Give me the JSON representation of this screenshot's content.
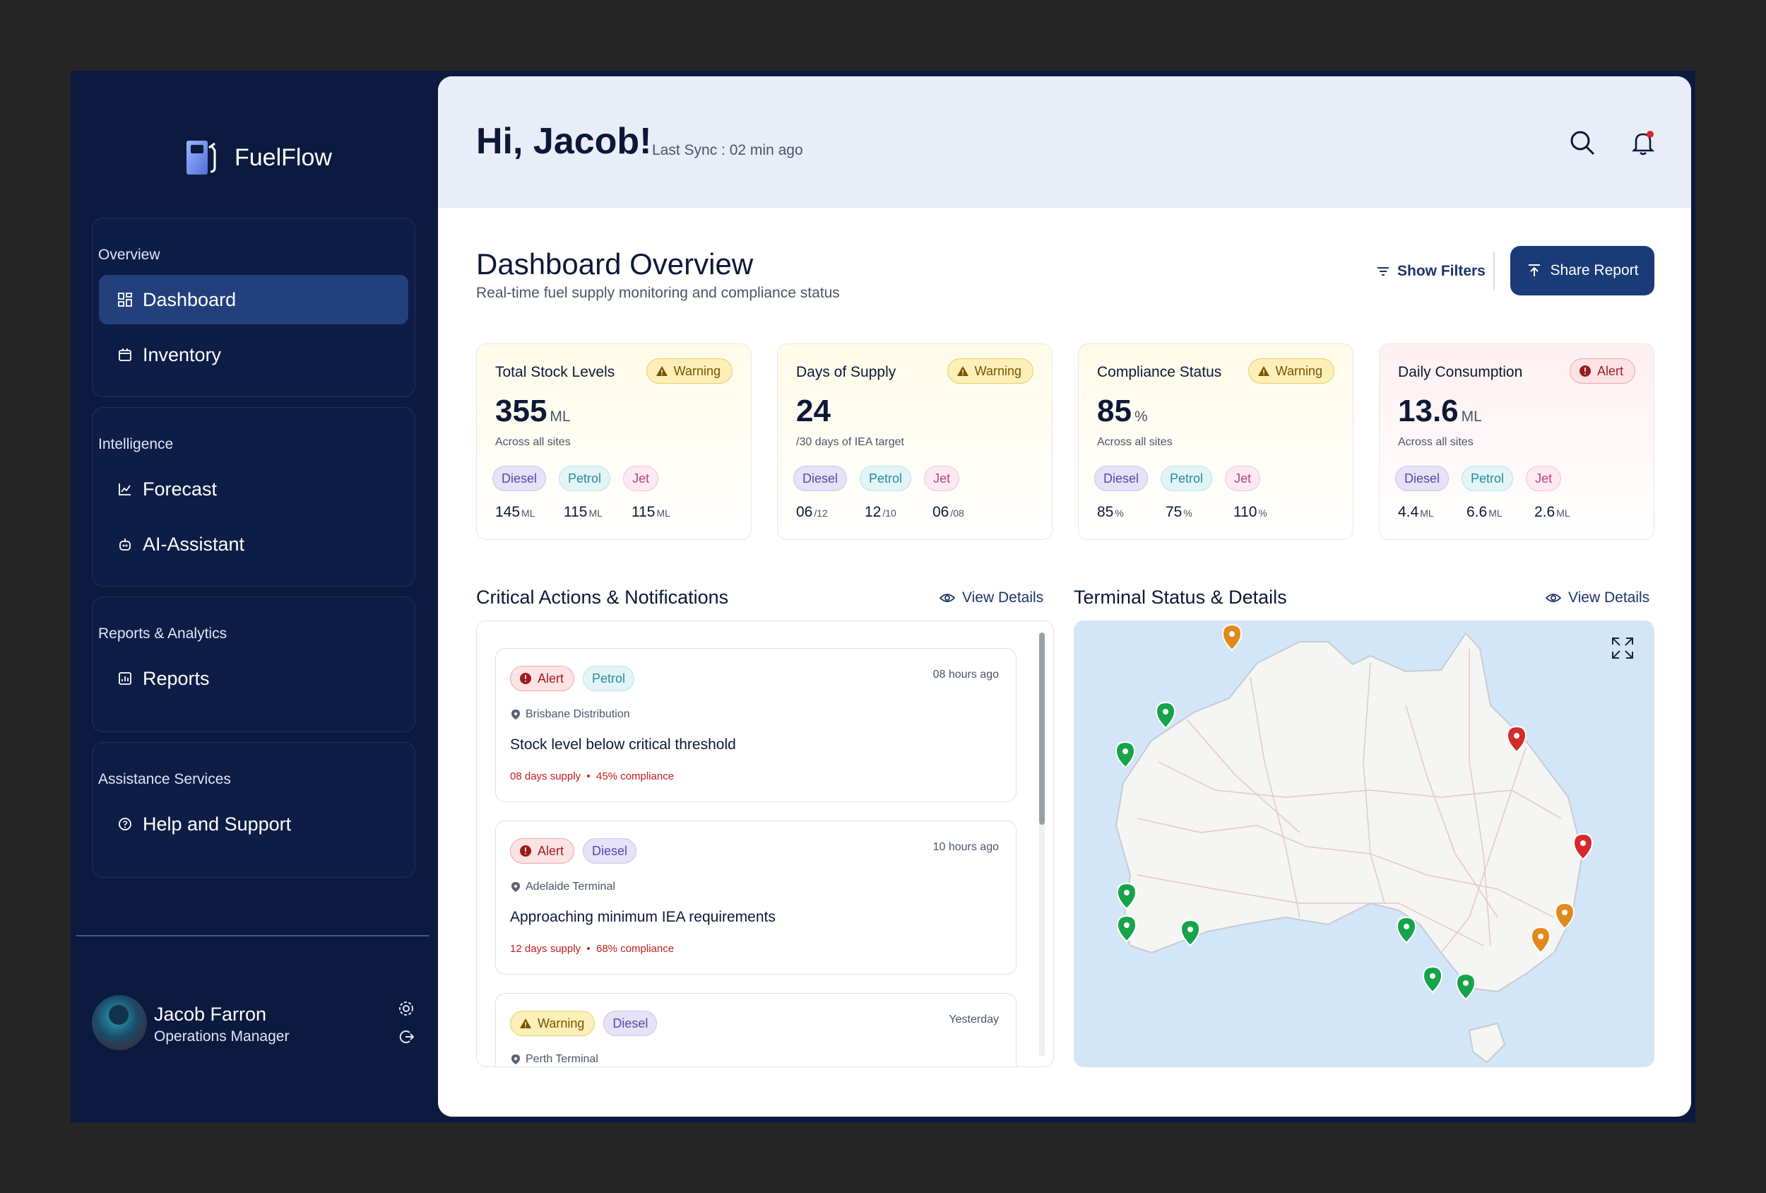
{
  "brand": {
    "name": "FuelFlow"
  },
  "sidebar": {
    "groups": [
      {
        "title": "Overview",
        "items": [
          {
            "label": "Dashboard",
            "icon": "grid-icon"
          },
          {
            "label": "Inventory",
            "icon": "box-icon"
          }
        ]
      },
      {
        "title": "Intelligence",
        "items": [
          {
            "label": "Forecast",
            "icon": "chart-line-icon"
          },
          {
            "label": "AI-Assistant",
            "icon": "robot-icon"
          }
        ]
      },
      {
        "title": "Reports & Analytics",
        "items": [
          {
            "label": "Reports",
            "icon": "report-icon"
          }
        ]
      },
      {
        "title": "Assistance Services",
        "items": [
          {
            "label": "Help and Support",
            "icon": "help-icon"
          }
        ]
      }
    ],
    "active": "Dashboard"
  },
  "user": {
    "name": "Jacob Farron",
    "role": "Operations Manager"
  },
  "header": {
    "greeting": "Hi, Jacob!",
    "sync": "Last Sync : 02 min ago"
  },
  "page": {
    "title": "Dashboard Overview",
    "subtitle": "Real-time fuel supply monitoring and compliance status",
    "show_filters": "Show Filters",
    "share_report": "Share Report"
  },
  "kpis": [
    {
      "title": "Total Stock Levels",
      "status": "Warning",
      "value": "355",
      "unit": "ML",
      "sub": "Across all sites",
      "breakdown": [
        {
          "fuel": "Diesel",
          "value": "145",
          "unit": "ML"
        },
        {
          "fuel": "Petrol",
          "value": "115",
          "unit": "ML"
        },
        {
          "fuel": "Jet",
          "value": "115",
          "unit": "ML"
        }
      ]
    },
    {
      "title": "Days of Supply",
      "status": "Warning",
      "value": "24",
      "unit": "",
      "sub": "/30 days of IEA target",
      "breakdown": [
        {
          "fuel": "Diesel",
          "value": "06",
          "unit": "/12"
        },
        {
          "fuel": "Petrol",
          "value": "12",
          "unit": "/10"
        },
        {
          "fuel": "Jet",
          "value": "06",
          "unit": "/08"
        }
      ]
    },
    {
      "title": "Compliance Status",
      "status": "Warning",
      "value": "85",
      "unit": "%",
      "sub": "Across all sites",
      "breakdown": [
        {
          "fuel": "Diesel",
          "value": "85",
          "unit": "%"
        },
        {
          "fuel": "Petrol",
          "value": "75",
          "unit": "%"
        },
        {
          "fuel": "Jet",
          "value": "110",
          "unit": "%"
        }
      ]
    },
    {
      "title": "Daily Consumption",
      "status": "Alert",
      "value": "13.6",
      "unit": "ML",
      "sub": "Across all sites",
      "breakdown": [
        {
          "fuel": "Diesel",
          "value": "4.4",
          "unit": "ML"
        },
        {
          "fuel": "Petrol",
          "value": "6.6",
          "unit": "ML"
        },
        {
          "fuel": "Jet",
          "value": "2.6",
          "unit": "ML"
        }
      ]
    }
  ],
  "notifications": {
    "title": "Critical Actions & Notifications",
    "view_details": "View Details",
    "items": [
      {
        "status": "Alert",
        "fuel": "Petrol",
        "time": "08 hours ago",
        "location": "Brisbane Distribution",
        "message": "Stock level below critical threshold",
        "supply": "08 days supply",
        "compliance": "45% compliance"
      },
      {
        "status": "Alert",
        "fuel": "Diesel",
        "time": "10 hours ago",
        "location": "Adelaide Terminal",
        "message": "Approaching minimum IEA requirements",
        "supply": "12 days supply",
        "compliance": "68% compliance"
      },
      {
        "status": "Warning",
        "fuel": "Diesel",
        "time": "Yesterday",
        "location": "Perth Terminal",
        "message": "",
        "supply": "",
        "compliance": ""
      }
    ]
  },
  "terminals": {
    "title": "Terminal Status & Details",
    "view_details": "View Details"
  },
  "colors": {
    "navy": "#0b1a3e",
    "accent": "#1b3a78",
    "alert": "#d42a2a",
    "warning": "#e08a1e",
    "ok": "#17a34a"
  }
}
